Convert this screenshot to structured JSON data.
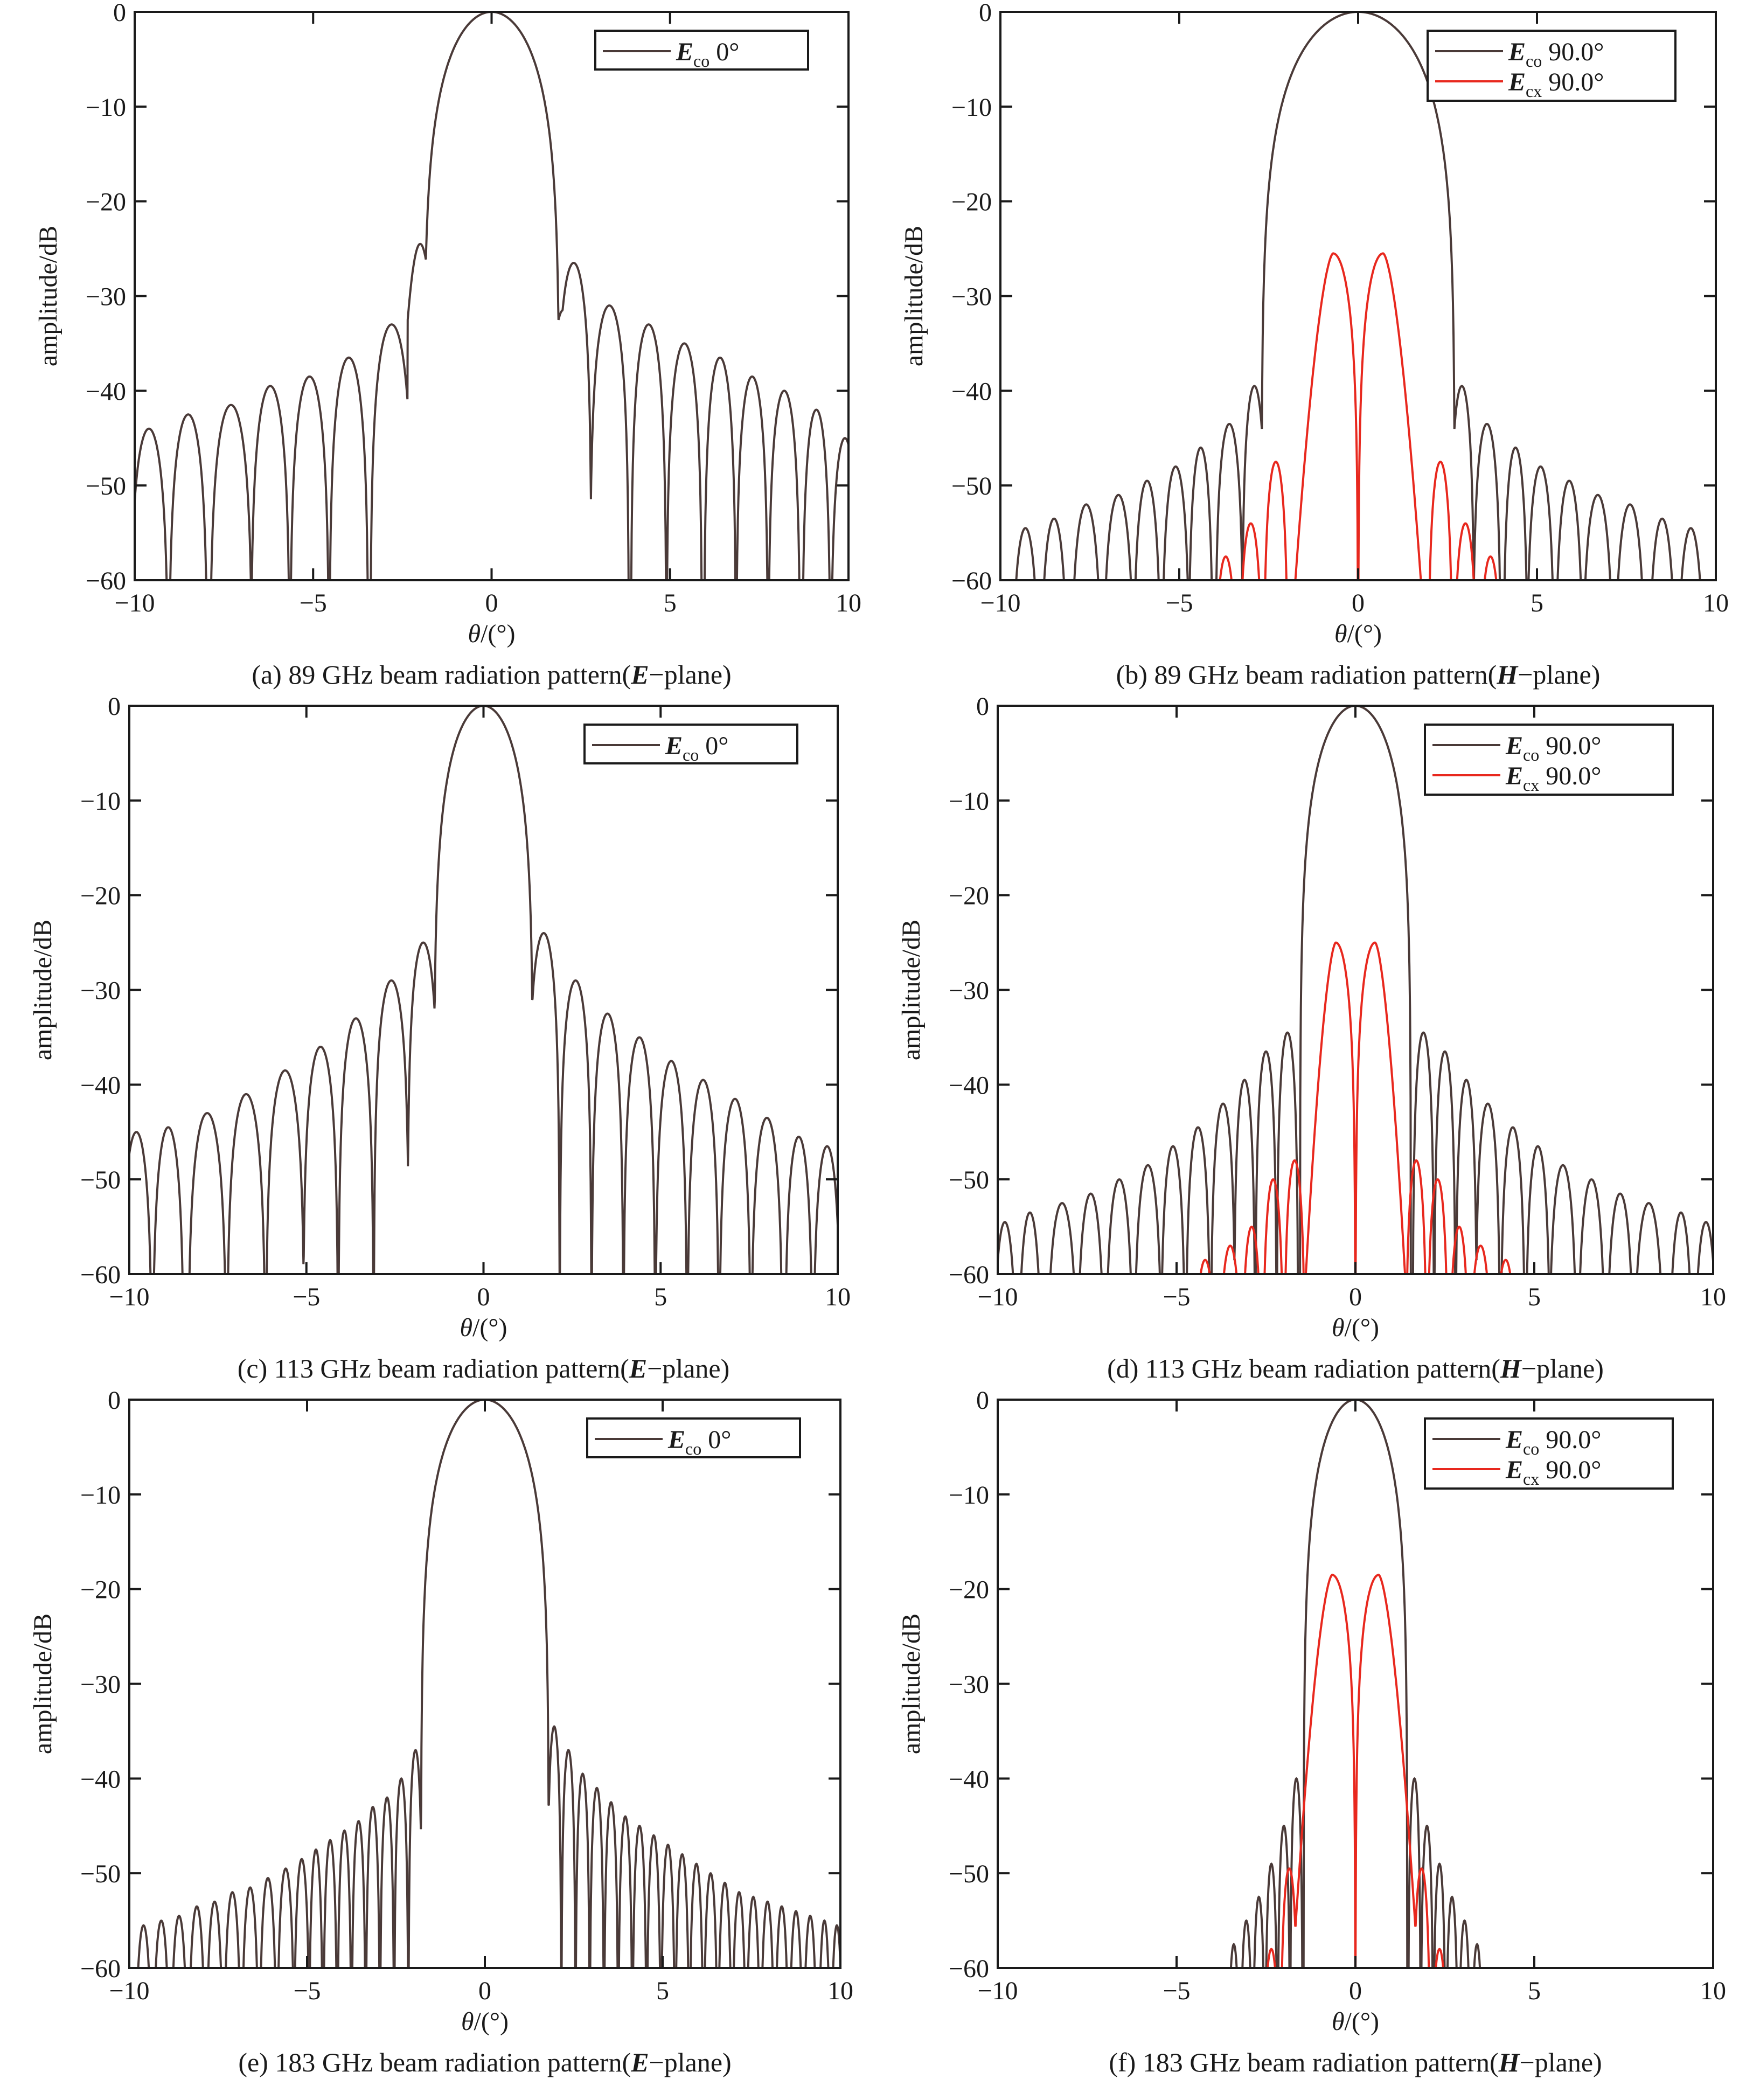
{
  "figure": {
    "panels": [
      {
        "id": "a",
        "caption": {
          "prefix": "(a) 89 GHz beam radiation pattern(",
          "bold": "E",
          "suffix": "−plane)"
        },
        "legend": [
          {
            "sym": "E",
            "sub": "co",
            "text": "0°",
            "color": "#4a3a38"
          }
        ]
      },
      {
        "id": "b",
        "caption": {
          "prefix": "(b) 89 GHz beam radiation pattern(",
          "bold": "H",
          "suffix": "−plane)"
        },
        "legend": [
          {
            "sym": "E",
            "sub": "co",
            "text": "90.0°",
            "color": "#4a3a38"
          },
          {
            "sym": "E",
            "sub": "cx",
            "text": "90.0°",
            "color": "#e8281e"
          }
        ]
      },
      {
        "id": "c",
        "caption": {
          "prefix": "(c) 113 GHz beam radiation pattern(",
          "bold": "E",
          "suffix": "−plane)"
        },
        "legend": [
          {
            "sym": "E",
            "sub": "co",
            "text": "0°",
            "color": "#4a3a38"
          }
        ]
      },
      {
        "id": "d",
        "caption": {
          "prefix": "(d) 113 GHz beam radiation pattern(",
          "bold": "H",
          "suffix": "−plane)"
        },
        "legend": [
          {
            "sym": "E",
            "sub": "co",
            "text": "90.0°",
            "color": "#4a3a38"
          },
          {
            "sym": "E",
            "sub": "cx",
            "text": "90.0°",
            "color": "#e8281e"
          }
        ]
      },
      {
        "id": "e",
        "caption": {
          "prefix": "(e) 183 GHz beam radiation pattern(",
          "bold": "E",
          "suffix": "−plane)"
        },
        "legend": [
          {
            "sym": "E",
            "sub": "co",
            "text": "0°",
            "color": "#4a3a38"
          }
        ]
      },
      {
        "id": "f",
        "caption": {
          "prefix": "(f) 183 GHz beam radiation pattern(",
          "bold": "H",
          "suffix": "−plane)"
        },
        "legend": [
          {
            "sym": "E",
            "sub": "co",
            "text": "90.0°",
            "color": "#4a3a38"
          },
          {
            "sym": "E",
            "sub": "cx",
            "text": "90.0°",
            "color": "#e8281e"
          }
        ]
      }
    ]
  },
  "chart_data": [
    {
      "type": "line",
      "panel": "a",
      "xlabel": "θ/(°)",
      "ylabel": "amplitude/dB",
      "xlim": [
        -10,
        10
      ],
      "ylim": [
        -60,
        0
      ],
      "xticks": [
        -10,
        -5,
        0,
        5,
        10
      ],
      "yticks": [
        0,
        -10,
        -20,
        -30,
        -40,
        -50,
        -60
      ],
      "grid": false,
      "legend_position": "top-right",
      "series": [
        {
          "name": "Eco 0°",
          "color": "#4a3a38",
          "mainlobe_half_width": 1.9,
          "shoulders": [
            [
              -2.0,
              -24.5
            ],
            [
              2.0,
              -31.5
            ]
          ],
          "sidelobes_left": [
            [
              -2.8,
              -33
            ],
            [
              -4.0,
              -36.5
            ],
            [
              -5.1,
              -38.5
            ],
            [
              -6.2,
              -39.5
            ],
            [
              -7.3,
              -41.5
            ],
            [
              -8.5,
              -42.5
            ],
            [
              -9.6,
              -44
            ]
          ],
          "sidelobes_right": [
            [
              2.3,
              -26.5
            ],
            [
              3.3,
              -31
            ],
            [
              4.4,
              -33
            ],
            [
              5.4,
              -35
            ],
            [
              6.4,
              -36.5
            ],
            [
              7.3,
              -38.5
            ],
            [
              8.2,
              -40
            ],
            [
              9.1,
              -42
            ],
            [
              9.9,
              -45
            ]
          ]
        }
      ]
    },
    {
      "type": "line",
      "panel": "b",
      "xlabel": "θ/(°)",
      "ylabel": "amplitude/dB",
      "xlim": [
        -10,
        10
      ],
      "ylim": [
        -60,
        0
      ],
      "xticks": [
        -10,
        -5,
        0,
        5,
        10
      ],
      "yticks": [
        0,
        -10,
        -20,
        -30,
        -40,
        -50,
        -60
      ],
      "grid": false,
      "legend_position": "top-right",
      "series": [
        {
          "name": "Eco 90.0°",
          "color": "#4a3a38",
          "mainlobe_half_width": 2.7,
          "sidelobes_left": [
            [
              -2.9,
              -39.5
            ],
            [
              -3.6,
              -43.5
            ],
            [
              -4.4,
              -46
            ],
            [
              -5.1,
              -48
            ],
            [
              -5.9,
              -49.5
            ],
            [
              -6.7,
              -51
            ],
            [
              -7.6,
              -52
            ],
            [
              -8.5,
              -53.5
            ],
            [
              -9.3,
              -54.5
            ]
          ],
          "sidelobes_right": [
            [
              2.9,
              -39.5
            ],
            [
              3.6,
              -43.5
            ],
            [
              4.4,
              -46
            ],
            [
              5.1,
              -48
            ],
            [
              5.9,
              -49.5
            ],
            [
              6.7,
              -51
            ],
            [
              7.6,
              -52
            ],
            [
              8.5,
              -53.5
            ],
            [
              9.3,
              -54.5
            ]
          ]
        },
        {
          "name": "Ecx 90.0°",
          "color": "#e8281e",
          "peaks": [
            [
              -0.7,
              -25.5
            ],
            [
              0.7,
              -25.5
            ]
          ],
          "sidelobes_left": [
            [
              -2.3,
              -47.5
            ],
            [
              -3.0,
              -54
            ],
            [
              -3.7,
              -57.5
            ]
          ],
          "sidelobes_right": [
            [
              2.3,
              -47.5
            ],
            [
              3.0,
              -54
            ],
            [
              3.7,
              -57.5
            ]
          ]
        }
      ]
    },
    {
      "type": "line",
      "panel": "c",
      "xlabel": "θ/(°)",
      "ylabel": "amplitude/dB",
      "xlim": [
        -10,
        10
      ],
      "ylim": [
        -60,
        0
      ],
      "xticks": [
        -10,
        -5,
        0,
        5,
        10
      ],
      "yticks": [
        0,
        -10,
        -20,
        -30,
        -40,
        -50,
        -60
      ],
      "grid": false,
      "legend_position": "top-right",
      "series": [
        {
          "name": "Eco 0°",
          "color": "#4a3a38",
          "mainlobe_half_width": 1.4,
          "sidelobes_left": [
            [
              -1.7,
              -25
            ],
            [
              -2.6,
              -29
            ],
            [
              -3.6,
              -33
            ],
            [
              -4.6,
              -36
            ],
            [
              -5.6,
              -38.5
            ],
            [
              -6.7,
              -41
            ],
            [
              -7.8,
              -43
            ],
            [
              -8.9,
              -44.5
            ],
            [
              -9.8,
              -45
            ]
          ],
          "sidelobes_right": [
            [
              1.7,
              -24
            ],
            [
              2.6,
              -29
            ],
            [
              3.5,
              -32.5
            ],
            [
              4.4,
              -35
            ],
            [
              5.3,
              -37.5
            ],
            [
              6.2,
              -39.5
            ],
            [
              7.1,
              -41.5
            ],
            [
              8.0,
              -43.5
            ],
            [
              8.9,
              -45.5
            ],
            [
              9.7,
              -46.5
            ]
          ]
        }
      ]
    },
    {
      "type": "line",
      "panel": "d",
      "xlabel": "θ/(°)",
      "ylabel": "amplitude/dB",
      "xlim": [
        -10,
        10
      ],
      "ylim": [
        -60,
        0
      ],
      "xticks": [
        -10,
        -5,
        0,
        5,
        10
      ],
      "yticks": [
        0,
        -10,
        -20,
        -30,
        -40,
        -50,
        -60
      ],
      "grid": false,
      "legend_position": "top-right",
      "series": [
        {
          "name": "Eco 90.0°",
          "color": "#4a3a38",
          "mainlobe_half_width": 1.55,
          "sidelobes_left": [
            [
              -1.9,
              -34.5
            ],
            [
              -2.5,
              -36.5
            ],
            [
              -3.1,
              -39.5
            ],
            [
              -3.7,
              -42
            ],
            [
              -4.4,
              -44.5
            ],
            [
              -5.1,
              -46.5
            ],
            [
              -5.8,
              -48.5
            ],
            [
              -6.6,
              -50
            ],
            [
              -7.4,
              -51.5
            ],
            [
              -8.2,
              -52.5
            ],
            [
              -9.1,
              -53.5
            ],
            [
              -9.8,
              -54.5
            ]
          ],
          "sidelobes_right": [
            [
              1.9,
              -34.5
            ],
            [
              2.5,
              -36.5
            ],
            [
              3.1,
              -39.5
            ],
            [
              3.7,
              -42
            ],
            [
              4.4,
              -44.5
            ],
            [
              5.1,
              -46.5
            ],
            [
              5.8,
              -48.5
            ],
            [
              6.6,
              -50
            ],
            [
              7.4,
              -51.5
            ],
            [
              8.2,
              -52.5
            ],
            [
              9.1,
              -53.5
            ],
            [
              9.8,
              -54.5
            ]
          ]
        },
        {
          "name": "Ecx 90.0°",
          "color": "#e8281e",
          "peaks": [
            [
              -0.55,
              -25
            ],
            [
              0.55,
              -25
            ]
          ],
          "sidelobes_left": [
            [
              -1.7,
              -48
            ],
            [
              -2.3,
              -50
            ],
            [
              -2.9,
              -55
            ],
            [
              -3.5,
              -57
            ],
            [
              -4.2,
              -58.5
            ]
          ],
          "sidelobes_right": [
            [
              1.7,
              -48
            ],
            [
              2.3,
              -50
            ],
            [
              2.9,
              -55
            ],
            [
              3.5,
              -57
            ],
            [
              4.2,
              -58.5
            ]
          ]
        }
      ]
    },
    {
      "type": "line",
      "panel": "e",
      "xlabel": "θ/(°)",
      "ylabel": "amplitude/dB",
      "xlim": [
        -10,
        10
      ],
      "ylim": [
        -60,
        0
      ],
      "xticks": [
        -10,
        -5,
        0,
        5,
        10
      ],
      "yticks": [
        0,
        -10,
        -20,
        -30,
        -40,
        -50,
        -60
      ],
      "grid": false,
      "legend_position": "top-right",
      "series": [
        {
          "name": "Eco 0°",
          "color": "#4a3a38",
          "mainlobe_half_width": 1.8,
          "sidelobes_left": [
            [
              -1.95,
              -37
            ],
            [
              -2.35,
              -40
            ],
            [
              -2.75,
              -42
            ],
            [
              -3.15,
              -43
            ],
            [
              -3.55,
              -44.5
            ],
            [
              -3.95,
              -45.5
            ],
            [
              -4.35,
              -46.5
            ],
            [
              -4.75,
              -47.5
            ],
            [
              -5.15,
              -48.5
            ],
            [
              -5.6,
              -49.5
            ],
            [
              -6.1,
              -50.5
            ],
            [
              -6.6,
              -51.5
            ],
            [
              -7.1,
              -52
            ],
            [
              -7.6,
              -53
            ],
            [
              -8.1,
              -53.5
            ],
            [
              -8.6,
              -54.5
            ],
            [
              -9.1,
              -55
            ],
            [
              -9.6,
              -55.5
            ]
          ],
          "sidelobes_right": [
            [
              1.95,
              -34.5
            ],
            [
              2.35,
              -37
            ],
            [
              2.75,
              -39.5
            ],
            [
              3.15,
              -41
            ],
            [
              3.55,
              -42.5
            ],
            [
              3.95,
              -44
            ],
            [
              4.35,
              -45
            ],
            [
              4.75,
              -46
            ],
            [
              5.15,
              -47
            ],
            [
              5.55,
              -48
            ],
            [
              5.95,
              -49
            ],
            [
              6.35,
              -50
            ],
            [
              6.75,
              -51
            ],
            [
              7.15,
              -52
            ],
            [
              7.55,
              -52.5
            ],
            [
              7.95,
              -53
            ],
            [
              8.35,
              -53.5
            ],
            [
              8.75,
              -54
            ],
            [
              9.15,
              -54.5
            ],
            [
              9.55,
              -55
            ],
            [
              9.9,
              -55.5
            ]
          ]
        }
      ]
    },
    {
      "type": "line",
      "panel": "f",
      "xlabel": "θ/(°)",
      "ylabel": "amplitude/dB",
      "xlim": [
        -10,
        10
      ],
      "ylim": [
        -60,
        0
      ],
      "xticks": [
        -10,
        -5,
        0,
        5,
        10
      ],
      "yticks": [
        0,
        -10,
        -20,
        -30,
        -40,
        -50,
        -60
      ],
      "grid": false,
      "legend_position": "top-right",
      "series": [
        {
          "name": "Eco 90.0°",
          "color": "#4a3a38",
          "mainlobe_half_width": 1.45,
          "sidelobes_left": [
            [
              -1.65,
              -40
            ],
            [
              -2.0,
              -45
            ],
            [
              -2.35,
              -49
            ],
            [
              -2.7,
              -52.5
            ],
            [
              -3.05,
              -55
            ],
            [
              -3.4,
              -57.5
            ]
          ],
          "sidelobes_right": [
            [
              1.65,
              -40
            ],
            [
              2.0,
              -45
            ],
            [
              2.35,
              -49
            ],
            [
              2.7,
              -52.5
            ],
            [
              3.05,
              -55
            ],
            [
              3.4,
              -57.5
            ]
          ]
        },
        {
          "name": "Ecx 90.0°",
          "color": "#e8281e",
          "peaks": [
            [
              -0.65,
              -18.5
            ],
            [
              0.65,
              -18.5
            ]
          ],
          "sidelobes_left": [
            [
              -1.85,
              -49.5
            ],
            [
              -2.35,
              -58
            ]
          ],
          "sidelobes_right": [
            [
              1.85,
              -49.5
            ],
            [
              2.35,
              -58
            ]
          ]
        }
      ]
    }
  ]
}
